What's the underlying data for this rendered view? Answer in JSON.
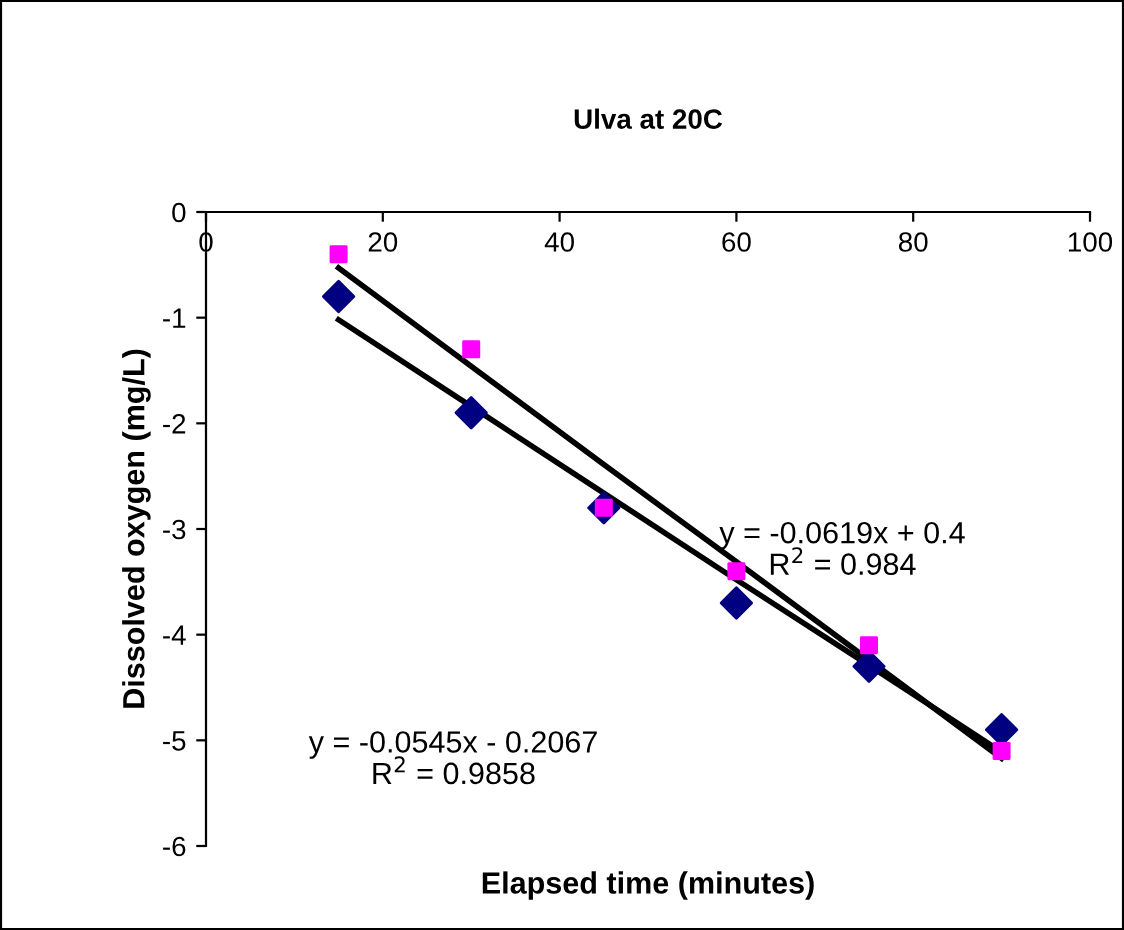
{
  "chart_data": {
    "type": "scatter",
    "title": "Ulva at 20C",
    "xlabel": "Elapsed time (minutes)",
    "ylabel": "Dissolved oxygen (mg/L)",
    "x": [
      15,
      30,
      45,
      60,
      75,
      90
    ],
    "series": [
      {
        "color": "#000080",
        "marker": "diamond",
        "values": [
          -0.8,
          -1.9,
          -2.8,
          -3.7,
          -4.3,
          -4.9
        ]
      },
      {
        "color": "#ff00ff",
        "marker": "square",
        "values": [
          -0.4,
          -1.3,
          -2.8,
          -3.4,
          -4.1,
          -5.1
        ]
      },
      {
        "type": "line",
        "color": "#000000",
        "marker": "none",
        "values": [
          -0.53,
          -1.46,
          -2.39,
          -3.31,
          -4.24,
          -5.17
        ]
      },
      {
        "type": "line",
        "color": "#000000",
        "marker": "none",
        "values": [
          -1.02,
          -1.84,
          -2.66,
          -3.48,
          -4.29,
          -5.11
        ]
      }
    ],
    "annotations": [
      "y = -0.0619x + 0.4",
      "R$^{2}$ = 0.984",
      "y = -0.0545x - 0.2067",
      "R$^{2}$ = 0.9858"
    ],
    "xlim": [
      0,
      100
    ],
    "xticks": [
      0,
      20,
      40,
      60,
      80,
      100
    ],
    "ylim": [
      -6,
      0
    ],
    "yticks": [
      -6,
      -5,
      -4,
      -3,
      -2,
      -1,
      0
    ],
    "grid": false,
    "legend": false
  }
}
